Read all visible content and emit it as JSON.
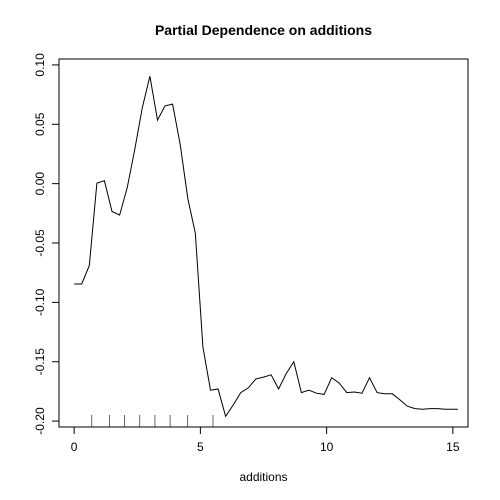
{
  "chart_data": {
    "type": "line",
    "title": "Partial Dependence on additions",
    "xlabel": "additions",
    "ylabel": "",
    "xlim": [
      -0.6,
      15.6
    ],
    "ylim": [
      -0.205,
      0.105
    ],
    "x_ticks": [
      0,
      5,
      10,
      15
    ],
    "x_tick_labels": [
      "0",
      "5",
      "10",
      "15"
    ],
    "y_ticks": [
      -0.2,
      -0.15,
      -0.1,
      -0.05,
      0.0,
      0.05,
      0.1
    ],
    "y_tick_labels": [
      "-0.20",
      "-0.15",
      "-0.10",
      "-0.05",
      "0.00",
      "0.05",
      "0.10"
    ],
    "grid": false,
    "series": [
      {
        "color": "#000000",
        "x": [
          0.0,
          0.3,
          0.6,
          0.9,
          1.2,
          1.5,
          1.8,
          2.1,
          2.4,
          2.7,
          3.0,
          3.3,
          3.6,
          3.9,
          4.2,
          4.5,
          4.8,
          5.1,
          5.4,
          5.7,
          6.0,
          6.3,
          6.6,
          6.9,
          7.2,
          7.5,
          7.8,
          8.1,
          8.4,
          8.7,
          9.0,
          9.3,
          9.6,
          9.9,
          10.2,
          10.5,
          10.8,
          11.1,
          11.4,
          11.7,
          12.0,
          12.3,
          12.6,
          12.9,
          13.2,
          13.5,
          13.8,
          14.1,
          14.4,
          14.7,
          15.0,
          15.2
        ],
        "y": [
          -0.0845,
          -0.0845,
          -0.069,
          0.0005,
          0.0025,
          -0.0235,
          -0.0265,
          -0.0035,
          0.0285,
          0.064,
          0.0905,
          0.0535,
          0.0655,
          0.067,
          0.033,
          -0.0125,
          -0.0415,
          -0.1375,
          -0.174,
          -0.173,
          -0.196,
          -0.1865,
          -0.176,
          -0.172,
          -0.1645,
          -0.163,
          -0.161,
          -0.173,
          -0.16,
          -0.15,
          -0.176,
          -0.174,
          -0.1765,
          -0.1775,
          -0.1635,
          -0.168,
          -0.176,
          -0.1755,
          -0.1765,
          -0.1635,
          -0.176,
          -0.177,
          -0.177,
          -0.182,
          -0.1875,
          -0.1895,
          -0.19,
          -0.1895,
          -0.1895,
          -0.19,
          -0.19,
          -0.19
        ]
      }
    ],
    "rug": [
      0.7,
      1.4,
      2.0,
      2.6,
      3.2,
      3.8,
      4.5,
      5.5
    ]
  }
}
